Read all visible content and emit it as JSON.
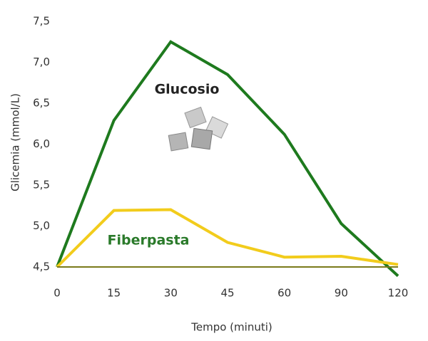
{
  "chart_data": {
    "type": "line",
    "x_label": "Tempo (minuti)",
    "y_label": "Glicemia (mmol/L)",
    "categories": [
      "0",
      "15",
      "30",
      "45",
      "60",
      "90",
      "120"
    ],
    "series": [
      {
        "name": "Glucosio",
        "color": "#1e7a1e",
        "label_color": "#222222",
        "values": [
          4.5,
          6.29,
          7.25,
          6.85,
          6.12,
          5.03,
          4.39
        ]
      },
      {
        "name": "Fiberpasta",
        "color": "#f2cc1c",
        "label_color": "#2a7a2a",
        "values": [
          4.5,
          5.19,
          5.2,
          4.8,
          4.62,
          4.63,
          4.53
        ]
      }
    ],
    "ylim": [
      4.5,
      7.5
    ],
    "yticks": [
      {
        "value": 4.5,
        "label": "4,5"
      },
      {
        "value": 5.0,
        "label": "5,0"
      },
      {
        "value": 5.5,
        "label": "5,5"
      },
      {
        "value": 6.0,
        "label": "6,0"
      },
      {
        "value": 6.5,
        "label": "6,5"
      },
      {
        "value": 7.0,
        "label": "7,0"
      },
      {
        "value": 7.5,
        "label": "7,5"
      }
    ]
  }
}
